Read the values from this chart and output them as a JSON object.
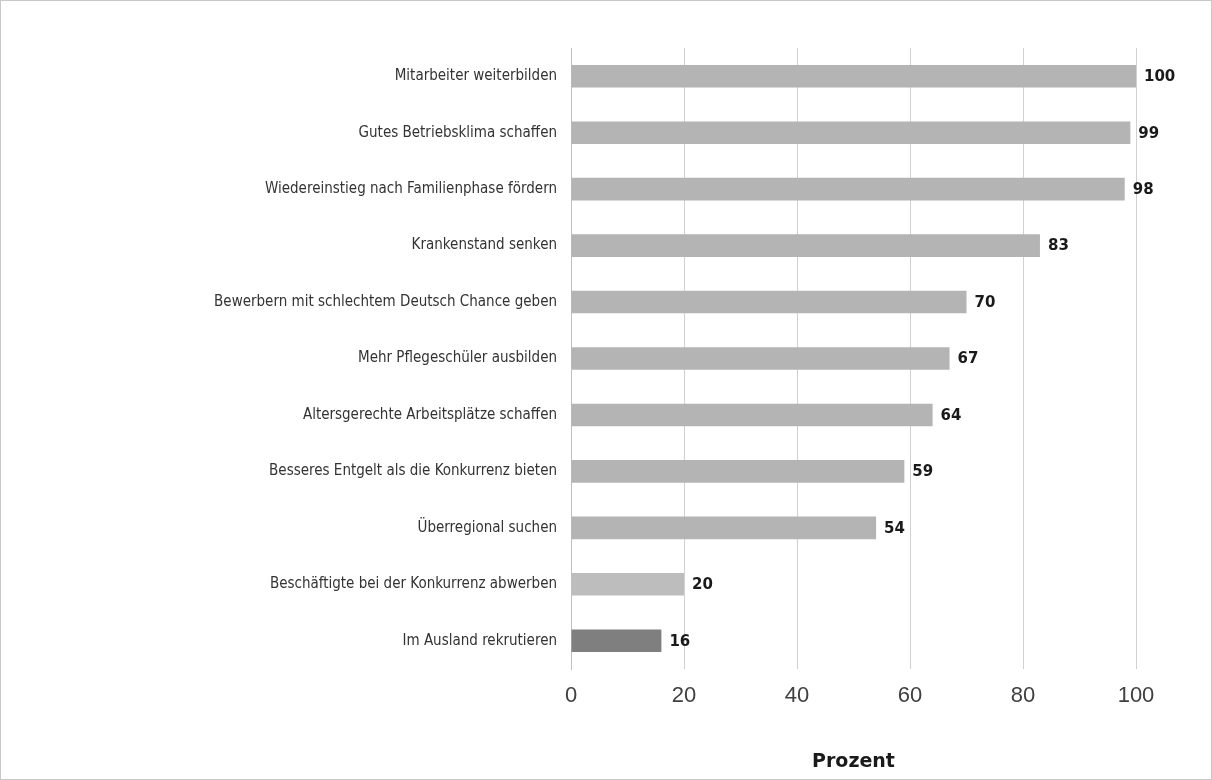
{
  "chart_data": {
    "type": "bar",
    "orientation": "horizontal",
    "xlabel": "Prozent",
    "categories": [
      "Mitarbeiter weiterbilden",
      "Gutes Betriebsklima schaffen",
      "Wiedereinstieg nach Familienphase fördern",
      "Krankenstand senken",
      "Bewerbern mit schlechtem Deutsch Chance geben",
      "Mehr Pflegeschüler ausbilden",
      "Altersgerechte Arbeitsplätze schaffen",
      "Besseres Entgelt als die Konkurrenz bieten",
      "Überregional suchen",
      "Beschäftigte bei der Konkurrenz abwerben",
      "Im Ausland rekrutieren"
    ],
    "values": [
      100,
      99,
      98,
      83,
      70,
      67,
      64,
      59,
      54,
      20,
      16
    ],
    "colors": [
      "#b4b4b4",
      "#b4b4b4",
      "#b4b4b4",
      "#b4b4b4",
      "#b4b4b4",
      "#b4b4b4",
      "#b4b4b4",
      "#b4b4b4",
      "#b4b4b4",
      "#bdbdbd",
      "#7f7f7f"
    ],
    "xlim": [
      0,
      100
    ],
    "xticks": [
      0,
      20,
      40,
      60,
      80,
      100
    ],
    "grid": "x",
    "data_labels": true,
    "legend": false
  }
}
